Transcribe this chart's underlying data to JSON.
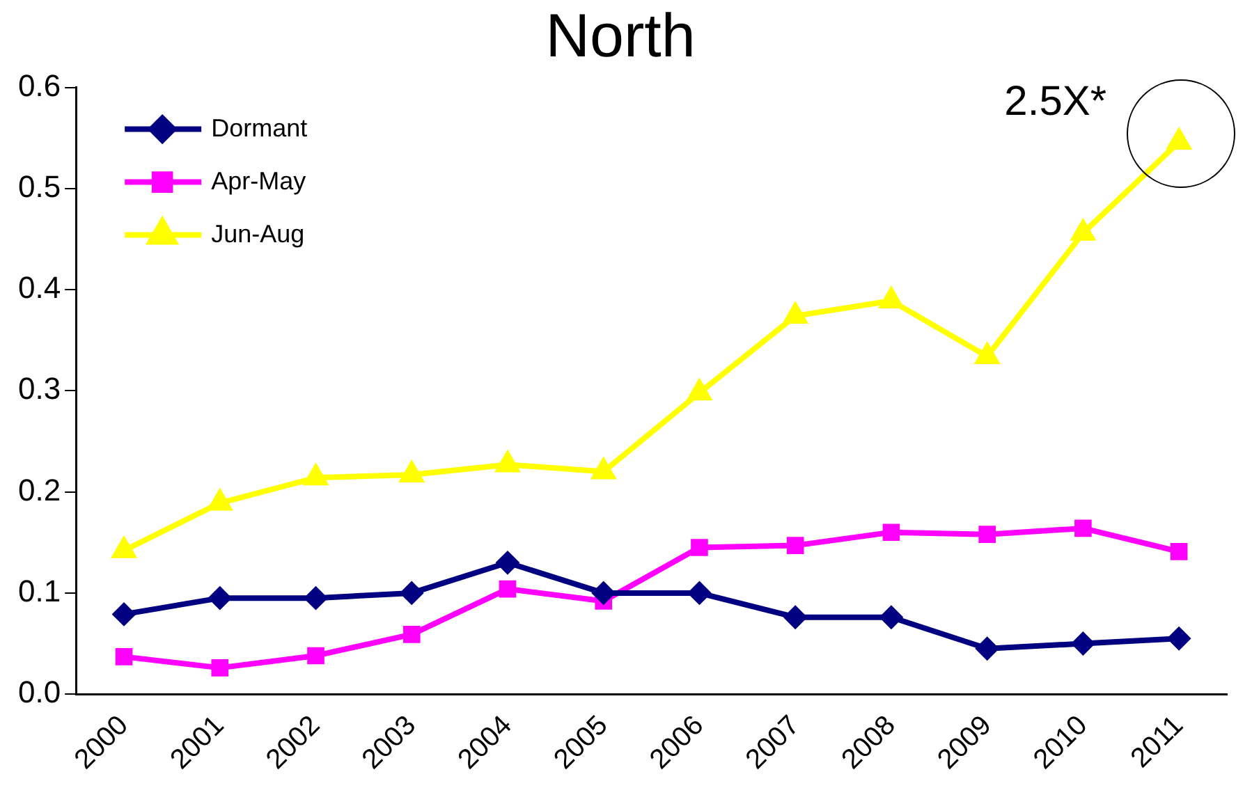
{
  "chart_data": {
    "type": "line",
    "title": "North",
    "categories": [
      "2000",
      "2001",
      "2002",
      "2003",
      "2004",
      "2005",
      "2006",
      "2007",
      "2008",
      "2009",
      "2010",
      "2011"
    ],
    "series": [
      {
        "name": "Dormant",
        "color": "#000080",
        "marker": "diamond",
        "values": [
          0.079,
          0.095,
          0.095,
          0.1,
          0.13,
          0.1,
          0.1,
          0.076,
          0.076,
          0.045,
          0.05,
          0.055
        ]
      },
      {
        "name": "Apr-May",
        "color": "#ff00ff",
        "marker": "square",
        "values": [
          0.037,
          0.026,
          0.038,
          0.059,
          0.104,
          0.092,
          0.145,
          0.147,
          0.16,
          0.158,
          0.164,
          0.141
        ]
      },
      {
        "name": "Jun-Aug",
        "color": "#ffff00",
        "marker": "triangle",
        "values": [
          0.142,
          0.189,
          0.214,
          0.217,
          0.227,
          0.22,
          0.298,
          0.374,
          0.389,
          0.334,
          0.456,
          0.546
        ]
      }
    ],
    "ylim": [
      0,
      0.6
    ],
    "yticks": [
      {
        "value": 0,
        "label": "0.0"
      },
      {
        "value": 0.1,
        "label": "0.1"
      },
      {
        "value": 0.2,
        "label": "0.2"
      },
      {
        "value": 0.3,
        "label": "0.3"
      },
      {
        "value": 0.4,
        "label": "0.4"
      },
      {
        "value": 0.5,
        "label": "0.5"
      },
      {
        "value": 0.6,
        "label": "0.6"
      }
    ],
    "grid": false,
    "legend": "top left",
    "line_style": "solid",
    "annotations": [
      {
        "text": "2.5X*",
        "x": "2011",
        "y": 0.546
      }
    ]
  }
}
